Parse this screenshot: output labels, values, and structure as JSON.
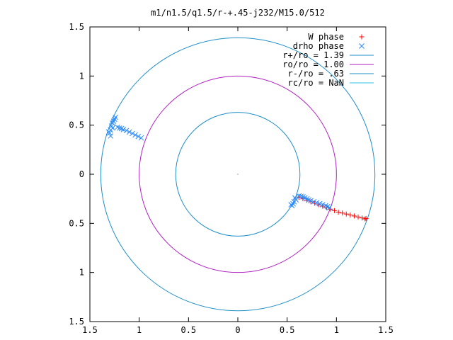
{
  "chart_data": {
    "type": "scatter",
    "title": "m1/n1.5/q1.5/r-+.45-j232/M15.0/512",
    "xlim": [
      -1.5,
      1.5
    ],
    "ylim": [
      -1.5,
      1.5
    ],
    "x_ticks": [
      {
        "value": -1.5,
        "label": "1.5"
      },
      {
        "value": -1.0,
        "label": "1"
      },
      {
        "value": -0.5,
        "label": "0.5"
      },
      {
        "value": 0.0,
        "label": "0"
      },
      {
        "value": 0.5,
        "label": "0.5"
      },
      {
        "value": 1.0,
        "label": "1"
      },
      {
        "value": 1.5,
        "label": "1.5"
      }
    ],
    "y_ticks": [
      {
        "value": 1.5,
        "label": "1.5"
      },
      {
        "value": 1.0,
        "label": "1"
      },
      {
        "value": 0.5,
        "label": "0.5"
      },
      {
        "value": 0.0,
        "label": "0"
      },
      {
        "value": -0.5,
        "label": "0.5"
      },
      {
        "value": -1.0,
        "label": "1"
      },
      {
        "value": -1.5,
        "label": "1.5"
      }
    ],
    "grid": false,
    "legend_position": "top-right",
    "series": [
      {
        "name": "W phase",
        "kind": "points",
        "marker": "plus",
        "color": "#ff0000",
        "x": [
          0.62,
          0.66,
          0.7,
          0.74,
          0.78,
          0.82,
          0.86,
          0.9,
          0.94,
          0.98,
          1.02,
          1.06,
          1.1,
          1.14,
          1.18,
          1.22,
          1.26,
          1.29,
          1.3
        ],
        "y": [
          -0.235,
          -0.25,
          -0.265,
          -0.28,
          -0.295,
          -0.31,
          -0.325,
          -0.34,
          -0.355,
          -0.37,
          -0.385,
          -0.395,
          -0.405,
          -0.415,
          -0.425,
          -0.435,
          -0.445,
          -0.455,
          -0.45
        ]
      },
      {
        "name": "drho phase",
        "kind": "points",
        "marker": "cross",
        "color": "#2a8bff",
        "x": [
          -1.3,
          -1.29,
          -1.28,
          -1.27,
          -1.26,
          -1.25,
          -1.24,
          -1.22,
          -1.2,
          -1.18,
          -1.16,
          -1.13,
          -1.1,
          -1.07,
          -1.04,
          -1.01,
          -0.98,
          -1.29,
          -1.31,
          -1.27,
          0.62,
          0.64,
          0.66,
          0.68,
          0.7,
          0.72,
          0.74,
          0.77,
          0.8,
          0.83,
          0.86,
          0.89,
          0.91,
          0.93,
          0.59,
          0.57,
          0.56,
          0.55,
          0.54,
          0.58
        ],
        "y": [
          0.42,
          0.45,
          0.49,
          0.52,
          0.54,
          0.56,
          0.58,
          0.48,
          0.47,
          0.465,
          0.455,
          0.445,
          0.43,
          0.415,
          0.4,
          0.385,
          0.37,
          0.39,
          0.43,
          0.47,
          -0.22,
          -0.225,
          -0.23,
          -0.24,
          -0.25,
          -0.26,
          -0.27,
          -0.28,
          -0.29,
          -0.3,
          -0.31,
          -0.32,
          -0.33,
          -0.34,
          -0.26,
          -0.28,
          -0.3,
          -0.32,
          -0.31,
          -0.24
        ]
      },
      {
        "name": "r+/ro = 1.39",
        "kind": "circle",
        "r": 1.39,
        "color": "#1f8ec9"
      },
      {
        "name": "ro/ro = 1.00",
        "kind": "circle",
        "r": 1.0,
        "color": "#b01fc2"
      },
      {
        "name": "r-/ro = .63",
        "kind": "circle",
        "r": 0.63,
        "color": "#1f8ec9"
      },
      {
        "name": "rc/ro = NaN",
        "kind": "circle",
        "r": null,
        "color": "#33c5e8"
      }
    ]
  }
}
